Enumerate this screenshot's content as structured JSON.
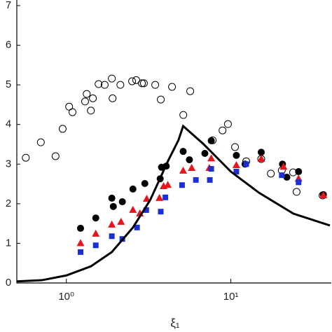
{
  "chart_data": {
    "type": "scatter",
    "x_label": "ξ₁",
    "xlog": true,
    "xlim": [
      0.5,
      40
    ],
    "xticks": [
      {
        "value": 1,
        "label": "10⁰"
      },
      {
        "value": 10,
        "label": "10¹"
      }
    ],
    "ylim": [
      0,
      7
    ],
    "yticks": [
      0,
      1,
      2,
      3,
      4,
      5,
      6,
      7
    ],
    "series": [
      {
        "marker": "open-circle",
        "color": "#000000",
        "x": [
          0.567,
          0.7,
          0.86,
          0.95,
          1.04,
          1.09,
          1.3,
          1.33,
          1.41,
          1.45,
          1.57,
          1.71,
          1.89,
          1.91,
          2.13,
          2.51,
          2.66,
          2.88,
          2.96,
          3.47,
          3.75,
          4.39,
          5.14,
          5.66,
          7.75,
          8.9,
          9.6,
          10.6,
          12.4,
          15.3,
          17.5,
          20.4,
          23.9,
          25.1,
          36.1
        ],
        "values": [
          3.16,
          3.55,
          3.2,
          3.89,
          4.45,
          4.31,
          4.58,
          4.77,
          4.35,
          4.66,
          5.02,
          5.0,
          5.16,
          4.66,
          5.0,
          5.09,
          5.12,
          5.04,
          5.04,
          5.0,
          4.63,
          4.95,
          4.24,
          4.84,
          3.6,
          3.85,
          4.01,
          3.43,
          3.07,
          3.13,
          2.76,
          2.84,
          2.79,
          2.3,
          2.21
        ]
      },
      {
        "marker": "circle",
        "color": "#000000",
        "x": [
          1.22,
          1.51,
          1.93,
          2.19,
          1.89,
          2.54,
          3.0,
          3.72,
          4.05,
          3.79,
          5.13,
          5.6,
          6.95,
          7.6,
          10.8,
          12.2,
          15.3,
          20.6,
          21.9,
          25.8,
          36.5
        ],
        "values": [
          1.38,
          1.64,
          1.93,
          2.05,
          2.14,
          2.37,
          2.51,
          2.63,
          2.95,
          2.92,
          3.32,
          3.11,
          3.27,
          3.59,
          3.22,
          3.0,
          3.3,
          3.0,
          2.67,
          2.81,
          2.23
        ]
      },
      {
        "marker": "triangle",
        "color": "#e8141b",
        "x": [
          1.22,
          1.51,
          1.89,
          2.15,
          2.54,
          2.8,
          3.08,
          3.68,
          3.9,
          4.14,
          5.13,
          5.78,
          7.4,
          7.6,
          10.8,
          15.3,
          20.9,
          25.8,
          36.5
        ],
        "values": [
          1.0,
          1.24,
          1.47,
          1.54,
          1.84,
          1.75,
          2.12,
          2.14,
          2.44,
          2.47,
          2.83,
          2.9,
          2.9,
          3.14,
          2.97,
          3.13,
          2.93,
          2.63,
          2.21
        ]
      },
      {
        "marker": "square",
        "color": "#1a2fd6",
        "x": [
          1.22,
          1.51,
          1.89,
          2.19,
          2.69,
          3.06,
          3.75,
          4.0,
          5.05,
          6.13,
          7.45,
          7.6,
          10.8,
          12.4,
          20.4,
          25.8
        ],
        "values": [
          0.78,
          0.95,
          1.18,
          1.11,
          1.4,
          1.84,
          1.8,
          2.16,
          2.47,
          2.6,
          2.6,
          2.88,
          2.81,
          3.0,
          2.72,
          2.54
        ]
      },
      {
        "marker": "line",
        "color": "#000000",
        "x": [
          0.5,
          0.71,
          1.0,
          1.41,
          1.89,
          2.54,
          3.24,
          4.14,
          4.8,
          5.13,
          6.76,
          10,
          14.8,
          24,
          40
        ],
        "values": [
          0.04,
          0.07,
          0.19,
          0.42,
          0.78,
          1.4,
          2.1,
          3.07,
          3.6,
          3.96,
          3.52,
          2.81,
          2.28,
          1.75,
          1.45
        ]
      }
    ]
  }
}
